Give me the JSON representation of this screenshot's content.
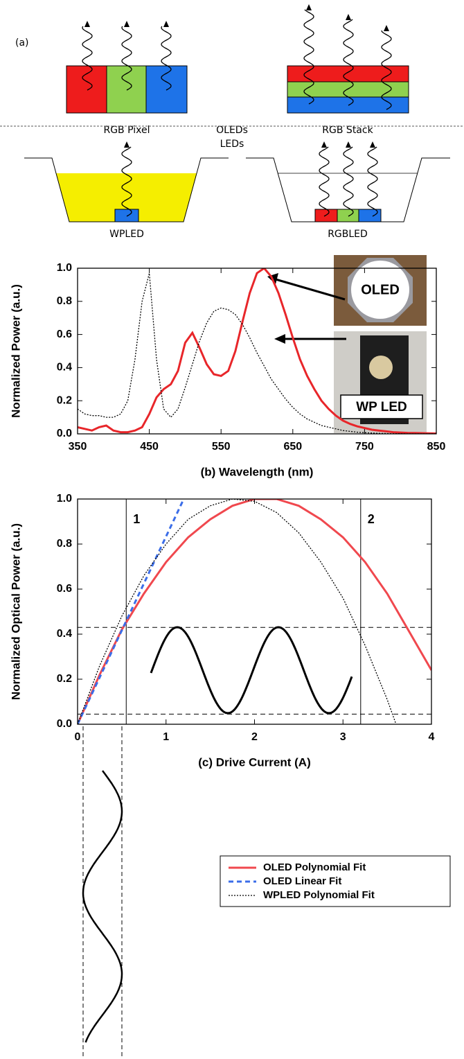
{
  "diagram": {
    "panel_label": "(a)",
    "rgb_pixel": "RGB Pixel",
    "oled_label": "OLEDs",
    "rgb_stack": "RGB Stack",
    "led_label": "LEDs",
    "wpled": "WPLED",
    "rgbled": "RGBLED"
  },
  "chart_data": [
    {
      "type": "line",
      "xlabel": "(b) Wavelength (nm)",
      "ylabel": "Normalized Power (a.u.)",
      "x": [
        350,
        360,
        370,
        380,
        390,
        400,
        410,
        420,
        430,
        440,
        450,
        460,
        470,
        480,
        490,
        500,
        510,
        520,
        530,
        540,
        550,
        560,
        570,
        580,
        590,
        600,
        610,
        620,
        630,
        640,
        650,
        660,
        670,
        680,
        690,
        700,
        710,
        720,
        730,
        740,
        750,
        760,
        770,
        780,
        790,
        800,
        810,
        820,
        830,
        840,
        850
      ],
      "series": [
        {
          "name": "OLED",
          "color": "#e8262a",
          "style": "solid",
          "values": [
            0.04,
            0.03,
            0.02,
            0.04,
            0.05,
            0.02,
            0.01,
            0.01,
            0.02,
            0.04,
            0.12,
            0.22,
            0.27,
            0.3,
            0.38,
            0.55,
            0.61,
            0.52,
            0.42,
            0.36,
            0.35,
            0.38,
            0.5,
            0.68,
            0.85,
            0.97,
            1.0,
            0.95,
            0.85,
            0.72,
            0.58,
            0.45,
            0.35,
            0.27,
            0.2,
            0.15,
            0.11,
            0.08,
            0.06,
            0.045,
            0.035,
            0.025,
            0.02,
            0.015,
            0.01,
            0.008,
            0.006,
            0.005,
            0.004,
            0.003,
            0.002
          ]
        },
        {
          "name": "WP LED",
          "color": "#000000",
          "style": "dotted",
          "values": [
            0.15,
            0.12,
            0.11,
            0.11,
            0.1,
            0.1,
            0.12,
            0.2,
            0.45,
            0.8,
            0.97,
            0.45,
            0.15,
            0.1,
            0.15,
            0.28,
            0.42,
            0.56,
            0.67,
            0.74,
            0.76,
            0.75,
            0.72,
            0.66,
            0.58,
            0.49,
            0.41,
            0.33,
            0.27,
            0.21,
            0.16,
            0.12,
            0.09,
            0.07,
            0.05,
            0.04,
            0.03,
            0.02,
            0.015,
            0.01,
            0.007,
            0.005,
            0.003,
            0.002,
            0.001,
            0.001,
            0,
            0,
            0,
            0,
            0
          ]
        }
      ],
      "xlim": [
        350,
        850
      ],
      "xticks": [
        350,
        450,
        550,
        650,
        750,
        850
      ],
      "ylim": [
        0,
        1
      ],
      "yticks": [
        {
          "value": 0,
          "label": "0.0"
        },
        0.2,
        0.4,
        0.6,
        0.8,
        {
          "value": 1,
          "label": "1.0"
        }
      ]
    },
    {
      "type": "line",
      "xlabel": "(c) Drive Current (A)",
      "ylabel": "Normalized Optical Power (a.u.)",
      "series": [
        {
          "name": "OLED Polynomial Fit",
          "color": "#f0484e",
          "style": "solid",
          "x": [
            0,
            0.25,
            0.5,
            0.75,
            1,
            1.25,
            1.5,
            1.75,
            2,
            2.25,
            2.5,
            2.75,
            3,
            3.25,
            3.5,
            3.75,
            4
          ],
          "values": [
            0,
            0.22,
            0.42,
            0.58,
            0.72,
            0.83,
            0.91,
            0.97,
            1.0,
            1.0,
            0.97,
            0.91,
            0.83,
            0.72,
            0.58,
            0.41,
            0.24
          ]
        },
        {
          "name": "OLED Linear Fit",
          "color": "#3b6de8",
          "style": "dashed",
          "x": [
            0,
            1.2
          ],
          "values": [
            0,
            1.0
          ]
        },
        {
          "name": "WPLED Polynomial Fit",
          "color": "#000000",
          "style": "dotted",
          "x": [
            0,
            0.25,
            0.5,
            0.75,
            1,
            1.25,
            1.5,
            1.75,
            2,
            2.25,
            2.5,
            2.75,
            3,
            3.25,
            3.5,
            3.6
          ],
          "values": [
            0,
            0.26,
            0.48,
            0.66,
            0.8,
            0.91,
            0.97,
            1.0,
            0.99,
            0.94,
            0.85,
            0.72,
            0.56,
            0.35,
            0.11,
            0
          ]
        }
      ],
      "xlim": [
        0,
        4
      ],
      "xticks": [
        0,
        1,
        2,
        3,
        4
      ],
      "ylim": [
        0,
        1
      ],
      "yticks": [
        {
          "value": 0,
          "label": "0.0"
        },
        0.2,
        0.4,
        0.6,
        0.8,
        {
          "value": 1,
          "label": "1.0"
        }
      ],
      "vlines": [
        {
          "value": 0.55,
          "label": "1"
        },
        {
          "value": 3.2,
          "label": "2"
        }
      ],
      "hlines": [
        0.43,
        0.045
      ],
      "legend": "below-right"
    }
  ]
}
